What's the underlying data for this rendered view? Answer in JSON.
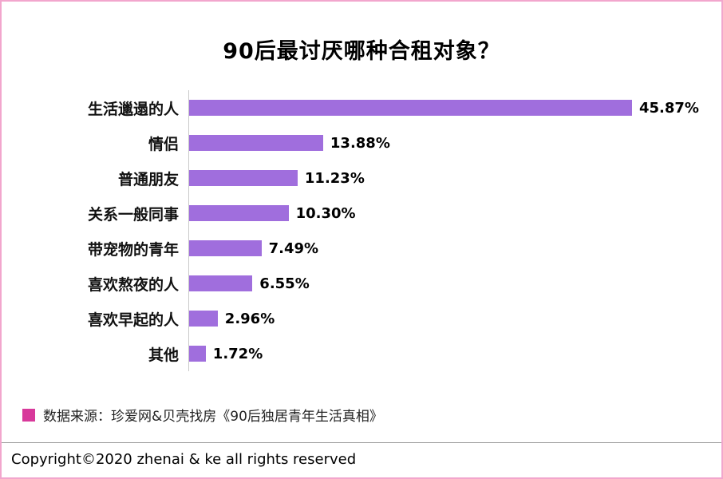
{
  "page": {
    "title": "90后最讨厌哪种合租对象？",
    "source_note": "数据来源：珍爱网&贝壳找房《90后独居青年生活真相》",
    "copyright": "Copyright©2020 zhenai & ke all rights reserved"
  },
  "colors": {
    "bar": "#a06edd",
    "legend_marker": "#d8399b",
    "page_border": "#f2a6cd",
    "axis_line": "#c9c9c9"
  },
  "chart_data": {
    "type": "bar",
    "orientation": "horizontal",
    "title": "90后最讨厌哪种合租对象？",
    "categories": [
      "生活邋遢的人",
      "情侣",
      "普通朋友",
      "关系一般同事",
      "带宠物的青年",
      "喜欢熬夜的人",
      "喜欢早起的人",
      "其他"
    ],
    "values": [
      45.87,
      13.88,
      11.23,
      10.3,
      7.49,
      6.55,
      2.96,
      1.72
    ],
    "value_labels": [
      "45.87%",
      "13.88%",
      "11.23%",
      "10.30%",
      "7.49%",
      "6.55%",
      "2.96%",
      "1.72%"
    ],
    "unit": "%",
    "xlim": [
      0,
      50
    ],
    "grid": false,
    "legend_position": "none",
    "value_labels_shown": true
  }
}
